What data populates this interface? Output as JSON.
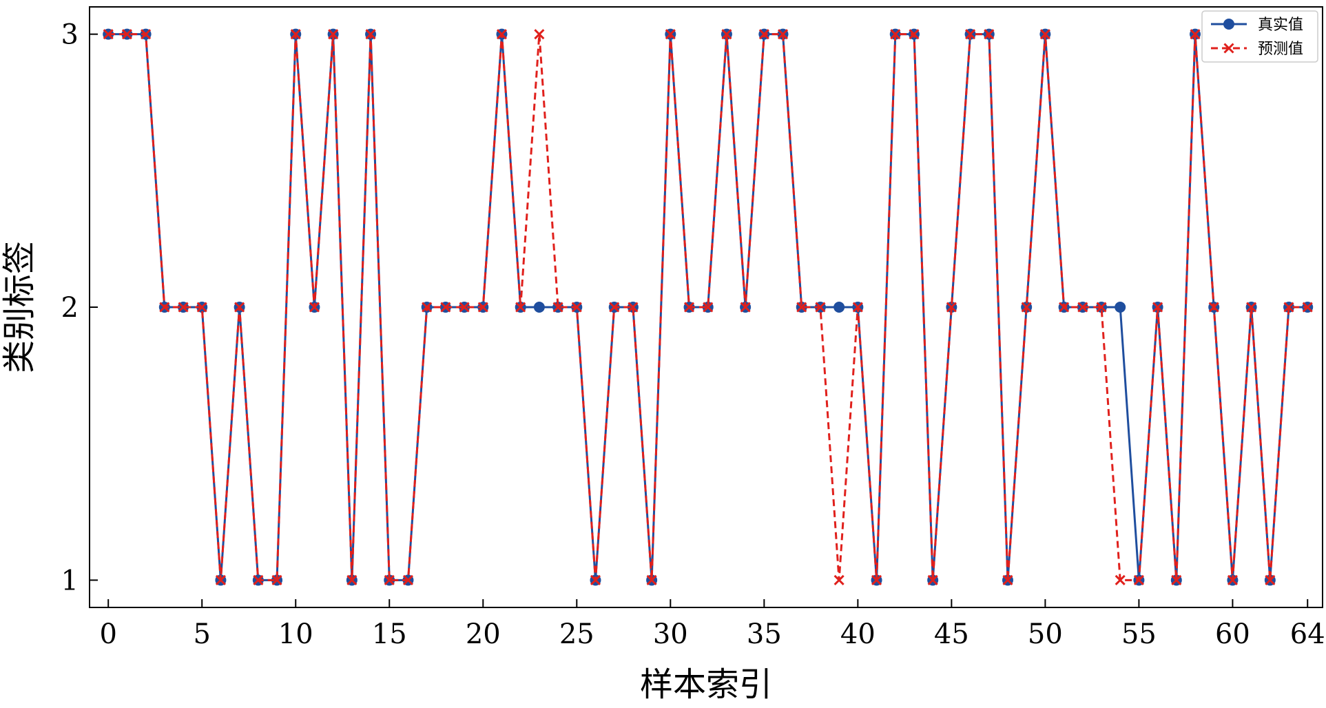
{
  "chart_data": {
    "type": "line",
    "xlabel": "样本索引",
    "ylabel": "类别标签",
    "xlim": [
      -1,
      64.8
    ],
    "ylim": [
      0.9,
      3.1
    ],
    "xticks": [
      0,
      5,
      10,
      15,
      20,
      25,
      30,
      35,
      40,
      45,
      50,
      55,
      60,
      64
    ],
    "xtick_labels": [
      "0",
      "5",
      "10",
      "15",
      "20",
      "25",
      "30",
      "35",
      "40",
      "45",
      "50",
      "55",
      "60",
      "64"
    ],
    "yticks": [
      1,
      2,
      3
    ],
    "ytick_labels": [
      "1",
      "2",
      "3"
    ],
    "grid": false,
    "legend_position": "top-right",
    "x": [
      0,
      1,
      2,
      3,
      4,
      5,
      6,
      7,
      8,
      9,
      10,
      11,
      12,
      13,
      14,
      15,
      16,
      17,
      18,
      19,
      20,
      21,
      22,
      23,
      24,
      25,
      26,
      27,
      28,
      29,
      30,
      31,
      32,
      33,
      34,
      35,
      36,
      37,
      38,
      39,
      40,
      41,
      42,
      43,
      44,
      45,
      46,
      47,
      48,
      49,
      50,
      51,
      52,
      53,
      54,
      55,
      56,
      57,
      58,
      59,
      60,
      61,
      62,
      63,
      64
    ],
    "series": [
      {
        "name": "真实值",
        "color": "#1f4e9e",
        "line_style": "solid",
        "marker": "circle",
        "values": [
          3,
          3,
          3,
          2,
          2,
          2,
          1,
          2,
          1,
          1,
          3,
          2,
          3,
          1,
          3,
          1,
          1,
          2,
          2,
          2,
          2,
          3,
          2,
          2,
          2,
          2,
          1,
          2,
          2,
          1,
          3,
          2,
          2,
          3,
          2,
          3,
          3,
          2,
          2,
          2,
          2,
          1,
          3,
          3,
          1,
          2,
          3,
          3,
          1,
          2,
          3,
          2,
          2,
          2,
          2,
          1,
          2,
          1,
          3,
          2,
          1,
          2,
          1,
          2,
          2
        ]
      },
      {
        "name": "预测值",
        "color": "#e0201c",
        "line_style": "dashed",
        "marker": "x",
        "values": [
          3,
          3,
          3,
          2,
          2,
          2,
          1,
          2,
          1,
          1,
          3,
          2,
          3,
          1,
          3,
          1,
          1,
          2,
          2,
          2,
          2,
          3,
          2,
          3,
          2,
          2,
          1,
          2,
          2,
          1,
          3,
          2,
          2,
          3,
          2,
          3,
          3,
          2,
          2,
          1,
          2,
          1,
          3,
          3,
          1,
          2,
          3,
          3,
          1,
          2,
          3,
          2,
          2,
          2,
          1,
          1,
          2,
          1,
          3,
          2,
          1,
          2,
          1,
          2,
          2
        ]
      }
    ]
  }
}
